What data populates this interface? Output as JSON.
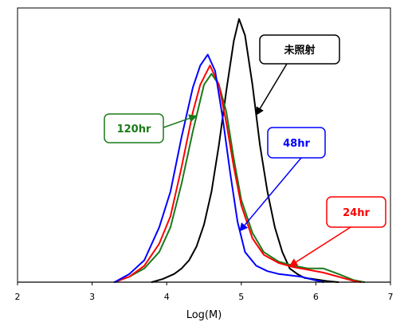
{
  "chart_data": {
    "type": "line",
    "xlabel": "Log(M)",
    "ylabel": "",
    "title": "",
    "xlim": [
      2,
      7
    ],
    "ylim": [
      0,
      1.0
    ],
    "x_ticks": [
      2,
      3,
      4,
      5,
      6,
      7
    ],
    "grid": false,
    "legend": "none",
    "series": [
      {
        "name": "未照射",
        "color": "#000000",
        "x": [
          3.8,
          3.95,
          4.1,
          4.2,
          4.3,
          4.4,
          4.5,
          4.6,
          4.7,
          4.8,
          4.9,
          4.97,
          5.05,
          5.15,
          5.25,
          5.35,
          5.45,
          5.55,
          5.65,
          5.75,
          5.85,
          5.95,
          6.05,
          6.15,
          6.3
        ],
        "y": [
          0.0,
          0.012,
          0.03,
          0.05,
          0.08,
          0.13,
          0.21,
          0.33,
          0.5,
          0.7,
          0.88,
          0.96,
          0.9,
          0.72,
          0.5,
          0.33,
          0.2,
          0.11,
          0.05,
          0.03,
          0.015,
          0.012,
          0.008,
          0.004,
          0.0
        ]
      },
      {
        "name": "120hr",
        "color": "#1a7a1a",
        "x": [
          3.3,
          3.5,
          3.7,
          3.9,
          4.05,
          4.2,
          4.35,
          4.5,
          4.6,
          4.7,
          4.8,
          4.9,
          5.0,
          5.15,
          5.3,
          5.5,
          5.7,
          5.9,
          6.1,
          6.3,
          6.5,
          6.65
        ],
        "y": [
          0.0,
          0.02,
          0.05,
          0.11,
          0.2,
          0.36,
          0.55,
          0.72,
          0.76,
          0.72,
          0.62,
          0.45,
          0.3,
          0.18,
          0.11,
          0.075,
          0.06,
          0.05,
          0.05,
          0.03,
          0.008,
          0.0
        ]
      },
      {
        "name": "24hr",
        "color": "#ff0000",
        "x": [
          3.3,
          3.5,
          3.7,
          3.9,
          4.05,
          4.2,
          4.35,
          4.45,
          4.58,
          4.7,
          4.8,
          4.9,
          5.0,
          5.15,
          5.3,
          5.5,
          5.7,
          5.9,
          6.1,
          6.3,
          6.5,
          6.6
        ],
        "y": [
          0.0,
          0.02,
          0.06,
          0.14,
          0.24,
          0.42,
          0.62,
          0.72,
          0.79,
          0.72,
          0.58,
          0.42,
          0.28,
          0.16,
          0.1,
          0.07,
          0.055,
          0.045,
          0.035,
          0.02,
          0.005,
          0.0
        ]
      },
      {
        "name": "48hr",
        "color": "#0000ff",
        "x": [
          3.3,
          3.5,
          3.7,
          3.9,
          4.05,
          4.2,
          4.35,
          4.45,
          4.55,
          4.65,
          4.75,
          4.85,
          4.95,
          5.05,
          5.2,
          5.35,
          5.5,
          5.65,
          5.8,
          5.95,
          6.1
        ],
        "y": [
          0.0,
          0.03,
          0.08,
          0.2,
          0.33,
          0.53,
          0.71,
          0.79,
          0.83,
          0.77,
          0.6,
          0.4,
          0.22,
          0.11,
          0.06,
          0.04,
          0.03,
          0.025,
          0.02,
          0.01,
          0.0
        ]
      }
    ],
    "annotations": [
      {
        "text": "未照射",
        "color": "#000000",
        "series": "未照射"
      },
      {
        "text": "120hr",
        "color": "#1a7a1a",
        "series": "120hr"
      },
      {
        "text": "48hr",
        "color": "#0000ff",
        "series": "48hr"
      },
      {
        "text": "24hr",
        "color": "#ff0000",
        "series": "24hr"
      }
    ]
  }
}
